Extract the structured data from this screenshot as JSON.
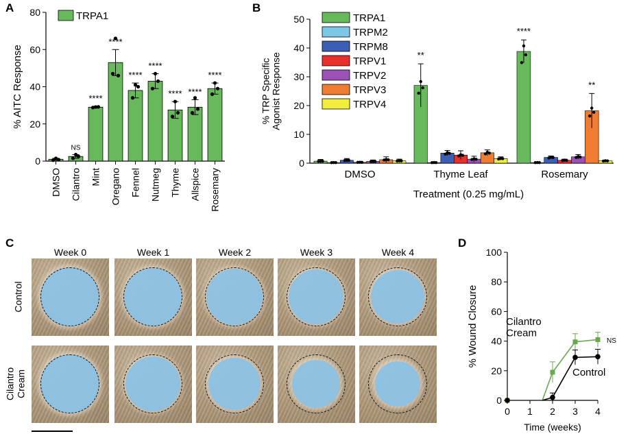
{
  "panels": {
    "a": "A",
    "b": "B",
    "c": "C",
    "d": "D"
  },
  "chart_data": [
    {
      "panel": "A",
      "type": "bar",
      "ylabel": "% AITC Response",
      "ylim": [
        0,
        80
      ],
      "yticks": [
        0,
        20,
        40,
        60,
        80
      ],
      "legend": [
        "TRPA1"
      ],
      "series_color": "#68b95b",
      "categories": [
        "DMSO",
        "Cilantro",
        "Mint",
        "Oregano",
        "Fennel",
        "Nutmeg",
        "Thyme",
        "Allspice",
        "Rosemary"
      ],
      "values": [
        1,
        2.5,
        29,
        53,
        38,
        43,
        27.5,
        29,
        39
      ],
      "errors": [
        0.5,
        1,
        0.5,
        7,
        4,
        4,
        4.5,
        4,
        3
      ],
      "points": [
        [
          0.5,
          1.5,
          0.8
        ],
        [
          1.5,
          3.5,
          2.5
        ],
        [
          28.8,
          29.1,
          29.2
        ],
        [
          47,
          66,
          46
        ],
        [
          34,
          41,
          40
        ],
        [
          39,
          47,
          43
        ],
        [
          24,
          32,
          26
        ],
        [
          26,
          34,
          28
        ],
        [
          36,
          42,
          39
        ]
      ],
      "annotations": [
        "",
        "NS",
        "****",
        "****",
        "****",
        "****",
        "****",
        "****",
        "****"
      ]
    },
    {
      "panel": "B",
      "type": "bar",
      "ylabel": "% TRP Specific\nAgonist Response",
      "xlabel": "Treatment (0.25 mg/mL)",
      "ylim": [
        0,
        50
      ],
      "yticks": [
        0,
        10,
        20,
        30,
        40,
        50
      ],
      "legend_position": "top-left",
      "categories": [
        "DMSO",
        "Thyme Leaf",
        "Rosemary"
      ],
      "series": [
        {
          "name": "TRPA1",
          "color": "#68b95b",
          "values": [
            0.7,
            27,
            38.8
          ],
          "errors": [
            0.6,
            7.5,
            4
          ],
          "annotations": [
            "",
            "**",
            "****"
          ]
        },
        {
          "name": "TRPM2",
          "color": "#7cc7e6",
          "values": [
            0.2,
            0.2,
            0.2
          ],
          "errors": [
            0,
            0,
            0
          ],
          "annotations": [
            "",
            "",
            ""
          ]
        },
        {
          "name": "TRPM8",
          "color": "#3a5fb5",
          "values": [
            1,
            3.5,
            2
          ],
          "errors": [
            0.6,
            0.9,
            0.5
          ],
          "annotations": [
            "",
            "",
            ""
          ]
        },
        {
          "name": "TRPV1",
          "color": "#e8302c",
          "values": [
            0.3,
            2.8,
            1
          ],
          "errors": [
            0.3,
            1.5,
            0.4
          ],
          "annotations": [
            "",
            "",
            ""
          ]
        },
        {
          "name": "TRPV2",
          "color": "#9a52b5",
          "values": [
            0.6,
            1.4,
            2.2
          ],
          "errors": [
            0.5,
            1,
            0.8
          ],
          "annotations": [
            "",
            "",
            ""
          ]
        },
        {
          "name": "TRPV3",
          "color": "#ee7d33",
          "values": [
            1.2,
            3.6,
            18.2
          ],
          "errors": [
            1,
            1,
            6
          ],
          "annotations": [
            "",
            "",
            "**"
          ]
        },
        {
          "name": "TRPV4",
          "color": "#f3ee3d",
          "values": [
            0.8,
            1.6,
            0.8
          ],
          "errors": [
            0.6,
            0.6,
            0.2
          ],
          "annotations": [
            "",
            "",
            ""
          ]
        }
      ]
    },
    {
      "panel": "D",
      "type": "line",
      "ylabel": "% Wound Closure",
      "xlabel": "Time (weeks)",
      "xlim": [
        0,
        4
      ],
      "ylim": [
        0,
        100
      ],
      "xticks": [
        0,
        1,
        2,
        3,
        4
      ],
      "yticks": [
        0,
        20,
        40,
        60,
        80,
        100
      ],
      "series": [
        {
          "name": "Cilantro\nCream",
          "color": "#6aa84f",
          "marker": "square",
          "x": [
            0,
            2,
            3,
            4
          ],
          "y": [
            0,
            19,
            39.5,
            41
          ],
          "errors": [
            0,
            7,
            5.5,
            5
          ]
        },
        {
          "name": "Control",
          "color": "#000000",
          "marker": "circle",
          "x": [
            0,
            2,
            3,
            4
          ],
          "y": [
            0,
            2,
            29,
            29.5
          ],
          "errors": [
            0,
            3,
            5,
            5
          ]
        }
      ],
      "annotation": "NS"
    }
  ],
  "panel_c": {
    "columns": [
      "Week 0",
      "Week 1",
      "Week 2",
      "Week 3",
      "Week 4"
    ],
    "rows": [
      "Control",
      "Cilantro\nCream"
    ],
    "wound_color": "#8ec3e6"
  }
}
